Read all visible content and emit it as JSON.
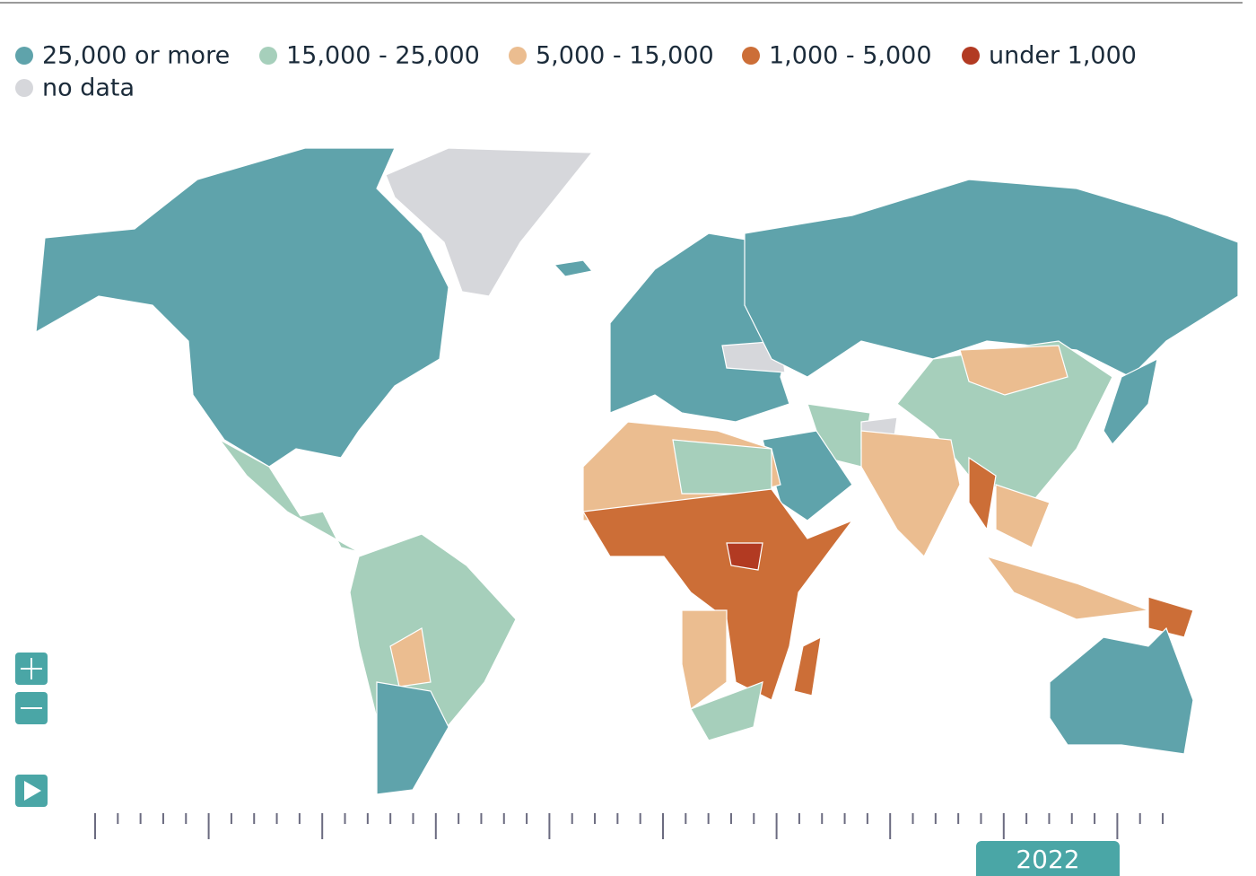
{
  "legend": [
    {
      "label": "25,000 or more",
      "color": "#5fa3ab"
    },
    {
      "label": "15,000 - 25,000",
      "color": "#a6cfbb"
    },
    {
      "label": "5,000 - 15,000",
      "color": "#ebbd90"
    },
    {
      "label": "1,000 - 5,000",
      "color": "#cc6e37"
    },
    {
      "label": "under 1,000",
      "color": "#b23a22"
    },
    {
      "label": "no data",
      "color": "#d6d7db"
    }
  ],
  "timeline": {
    "year": "2022"
  }
}
